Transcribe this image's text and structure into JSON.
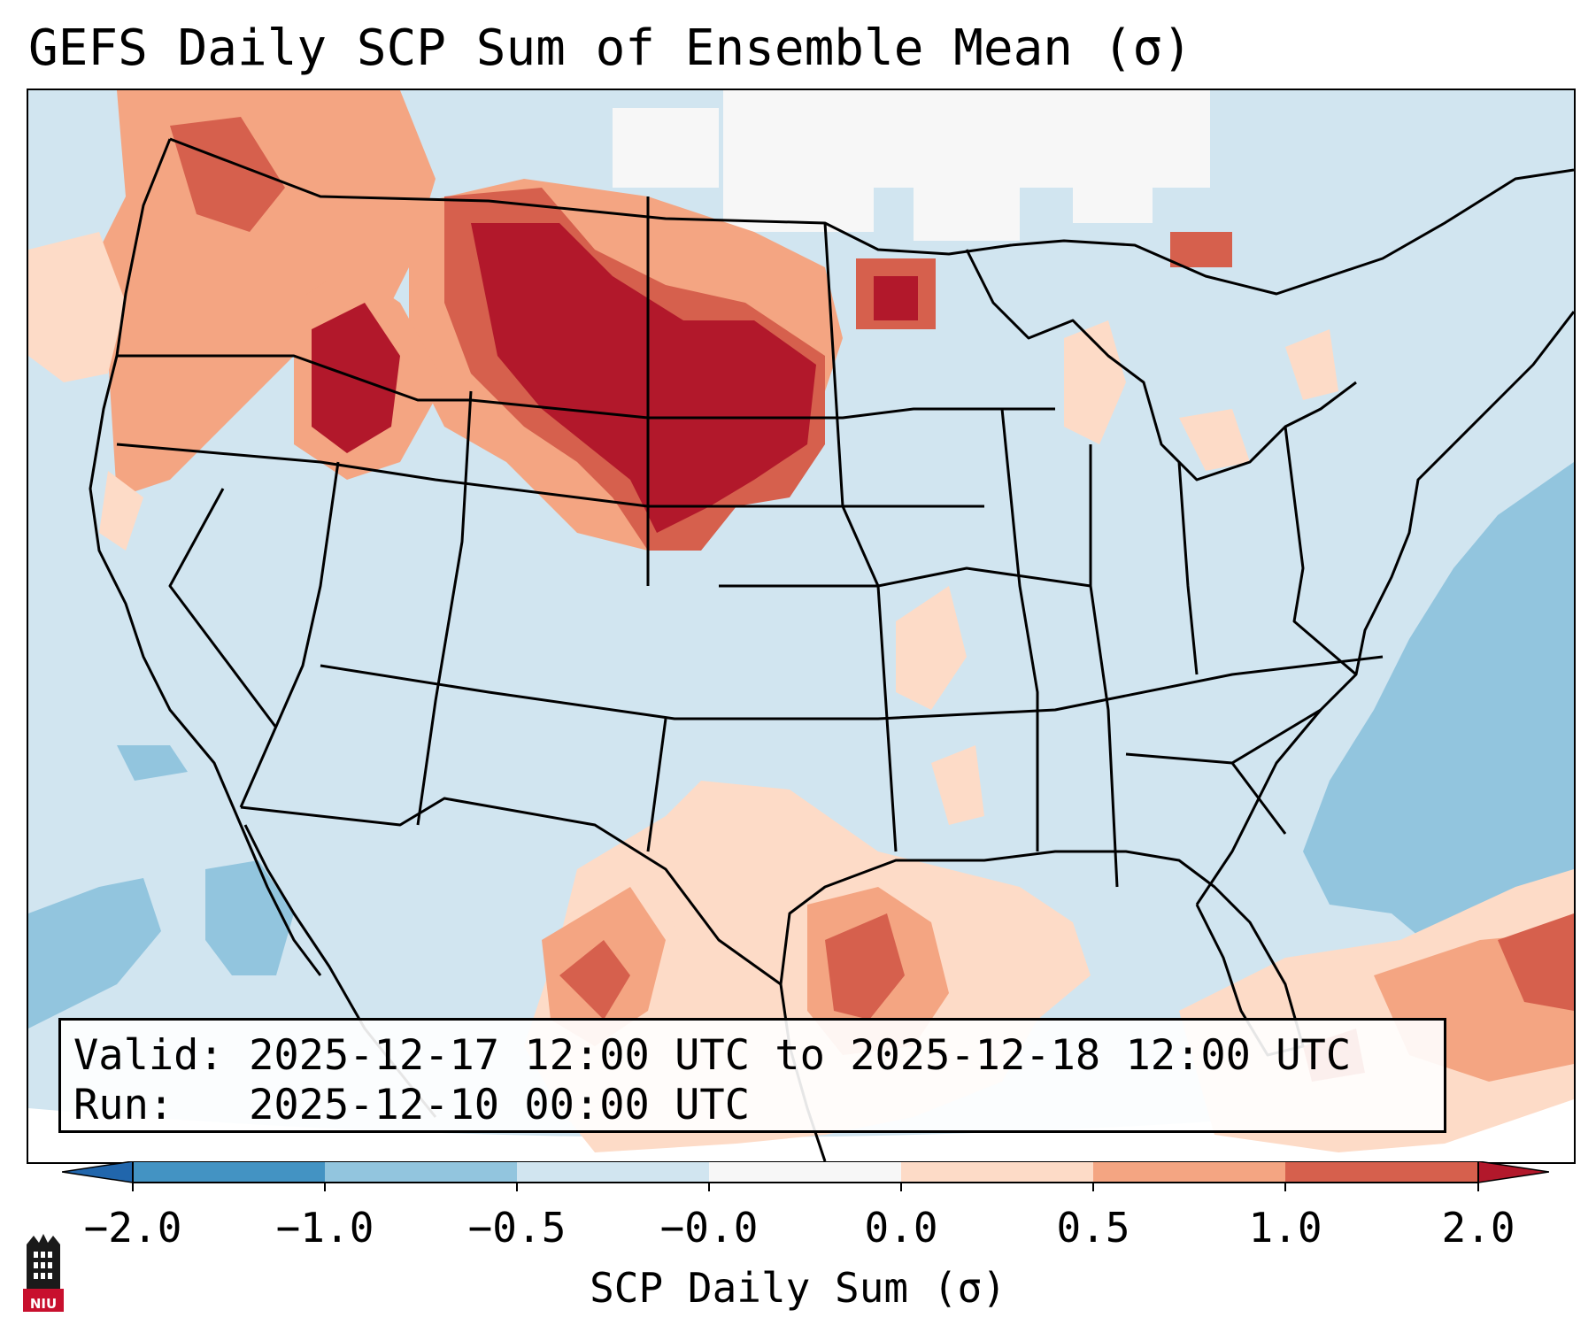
{
  "title": "GEFS Daily SCP Sum of Ensemble Mean (σ)",
  "info": {
    "valid_label": "Valid:",
    "valid_value": "2025-12-17 12:00 UTC to 2025-12-18 12:00 UTC",
    "run_label": "Run:",
    "run_value": "2025-12-10 00:00 UTC"
  },
  "colorbar": {
    "title": "SCP Daily Sum (σ)",
    "ticks": [
      "−2.0",
      "−1.0",
      "−0.5",
      "−0.0",
      "0.0",
      "0.5",
      "1.0",
      "2.0"
    ],
    "bins": [
      {
        "range": "< -2.0",
        "color": "#2166ac"
      },
      {
        "range": "-2.0 to -1.0",
        "color": "#4393c3"
      },
      {
        "range": "-1.0 to -0.5",
        "color": "#92c5de"
      },
      {
        "range": "-0.5 to -0.0",
        "color": "#d1e5f0"
      },
      {
        "range": "-0.0 to 0.0",
        "color": "#f7f7f7"
      },
      {
        "range": "0.0 to 0.5",
        "color": "#fddbc7"
      },
      {
        "range": "0.5 to 1.0",
        "color": "#f4a582"
      },
      {
        "range": "1.0 to 2.0",
        "color": "#d6604d"
      },
      {
        "range": "> 2.0",
        "color": "#b2182b"
      }
    ]
  },
  "regions": [
    {
      "name": "northern-plains",
      "level": "> 2.0"
    },
    {
      "name": "pacific-northwest",
      "level": "0.5 to 2.0"
    },
    {
      "name": "texas-gulf-coast",
      "level": "1.0 to 2.0"
    },
    {
      "name": "northern-mexico",
      "level": "0.5 to 2.0"
    },
    {
      "name": "western-atlantic",
      "level": "-1.0 to -0.5"
    }
  ],
  "logo": {
    "text": "NIU"
  }
}
